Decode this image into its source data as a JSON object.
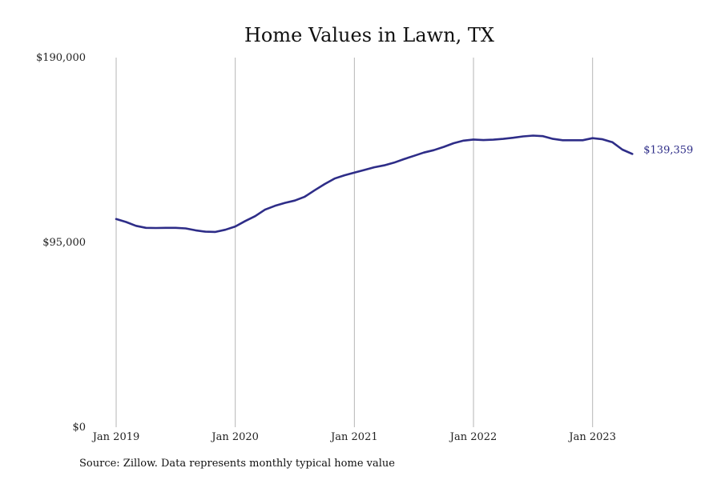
{
  "colors": {
    "series": "#2e2d88",
    "grid": "#b5b5b5",
    "text": "#111111"
  },
  "source_note": "Source: Zillow. Data represents monthly typical home value",
  "chart_data": {
    "type": "line",
    "title": "Home Values in Lawn, TX",
    "xlabel": "",
    "ylabel": "",
    "ylim": [
      0,
      190000
    ],
    "xlim": [
      "2019-01",
      "2023-12"
    ],
    "grid": {
      "x": true,
      "y": false
    },
    "legend": "none",
    "y_ticks": [
      {
        "value": 0,
        "label": "$0"
      },
      {
        "value": 95000,
        "label": "$95,000"
      },
      {
        "value": 190000,
        "label": "$190,000"
      }
    ],
    "x_ticks": [
      {
        "value": "2019-01",
        "label": "Jan 2019"
      },
      {
        "value": "2020-01",
        "label": "Jan 2020"
      },
      {
        "value": "2021-01",
        "label": "Jan 2021"
      },
      {
        "value": "2022-01",
        "label": "Jan 2022"
      },
      {
        "value": "2023-01",
        "label": "Jan 2023"
      }
    ],
    "end_label": "$139,359",
    "series": [
      {
        "x": [
          "2019-01",
          "2019-02",
          "2019-03",
          "2019-04",
          "2019-05",
          "2019-06",
          "2019-07",
          "2019-08",
          "2019-09",
          "2019-10",
          "2019-11",
          "2019-12",
          "2020-01",
          "2020-02",
          "2020-03",
          "2020-04",
          "2020-05",
          "2020-06",
          "2020-07",
          "2020-08",
          "2020-09",
          "2020-10",
          "2020-11",
          "2020-12",
          "2021-01",
          "2021-02",
          "2021-03",
          "2021-04",
          "2021-05",
          "2021-06",
          "2021-07",
          "2021-08",
          "2021-09",
          "2021-10",
          "2021-11",
          "2021-12",
          "2022-01",
          "2022-02",
          "2022-03",
          "2022-04",
          "2022-05",
          "2022-06",
          "2022-07",
          "2022-08",
          "2022-09",
          "2022-10",
          "2022-11",
          "2022-12",
          "2023-01",
          "2023-02",
          "2023-03",
          "2023-04",
          "2023-05"
        ],
        "values": [
          107000,
          105500,
          103500,
          102500,
          102400,
          102500,
          102500,
          102200,
          101200,
          100500,
          100400,
          101500,
          103200,
          106000,
          108500,
          111800,
          113800,
          115300,
          116500,
          118500,
          121800,
          125000,
          127800,
          129500,
          130900,
          132200,
          133600,
          134600,
          136000,
          137800,
          139500,
          141200,
          142400,
          144100,
          146000,
          147300,
          147900,
          147600,
          147800,
          148200,
          148800,
          149500,
          149900,
          149600,
          148200,
          147500,
          147500,
          147500,
          148600,
          148000,
          146500,
          142700,
          140500
        ]
      }
    ]
  }
}
